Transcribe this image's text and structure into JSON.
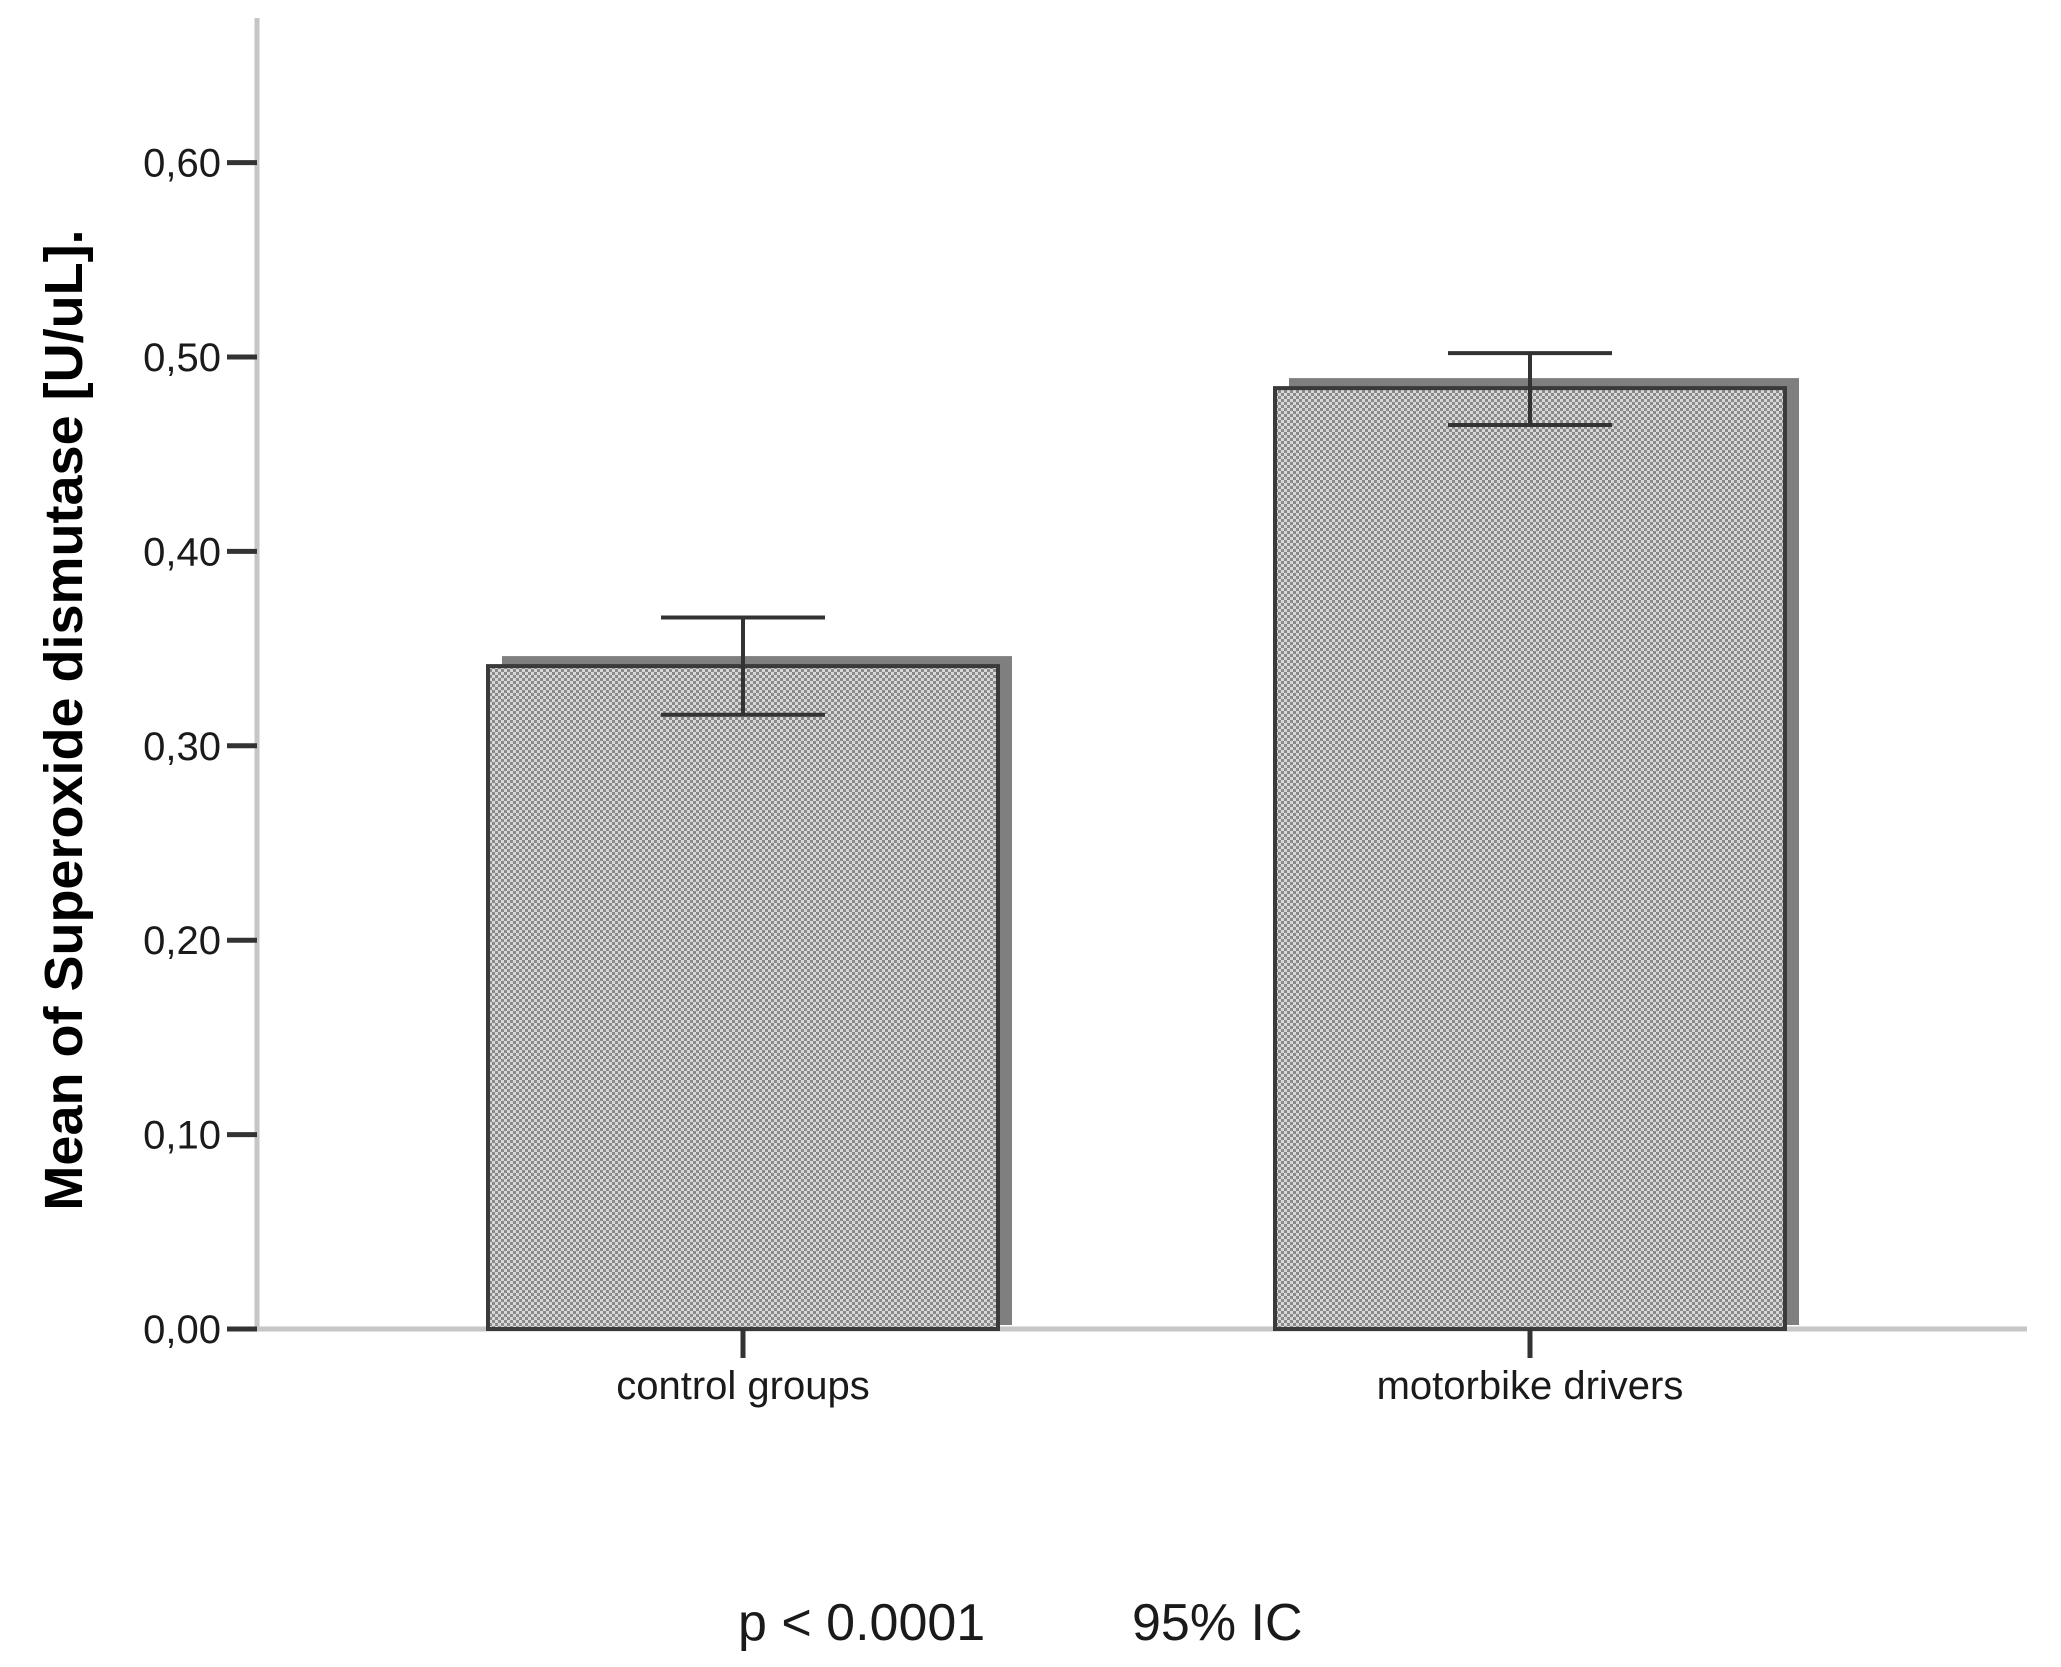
{
  "chart_data": {
    "type": "bar",
    "title": "",
    "xlabel": "",
    "ylabel": "Mean of Superoxide dismutase [U/uL].",
    "categories": [
      "control groups",
      "motorbike drivers"
    ],
    "values": [
      0.341,
      0.484
    ],
    "error_bars": {
      "lower": [
        0.316,
        0.465
      ],
      "upper": [
        0.366,
        0.502
      ]
    },
    "ylim": [
      0,
      0.67
    ],
    "y_ticks": [
      0.0,
      0.1,
      0.2,
      0.3,
      0.4,
      0.5,
      0.6
    ],
    "y_tick_labels": [
      "0,00",
      "0,10",
      "0,20",
      "0,30",
      "0,40",
      "0,50",
      "0,60"
    ],
    "grid": false,
    "legend": "none",
    "bar_style": "dotted-pattern with drop shadow",
    "annotations": {
      "p_value": "p < 0.0001",
      "interval": "95% IC"
    },
    "colors": {
      "bar_fill": "#d4d4d4",
      "bar_dots": "#7a7a7a",
      "bar_border": "#3a3a3a",
      "bar_shadow": "#7f7f7f",
      "axis": "#c6c6c6",
      "ticks": "#333333",
      "error_bar": "#333333"
    }
  }
}
